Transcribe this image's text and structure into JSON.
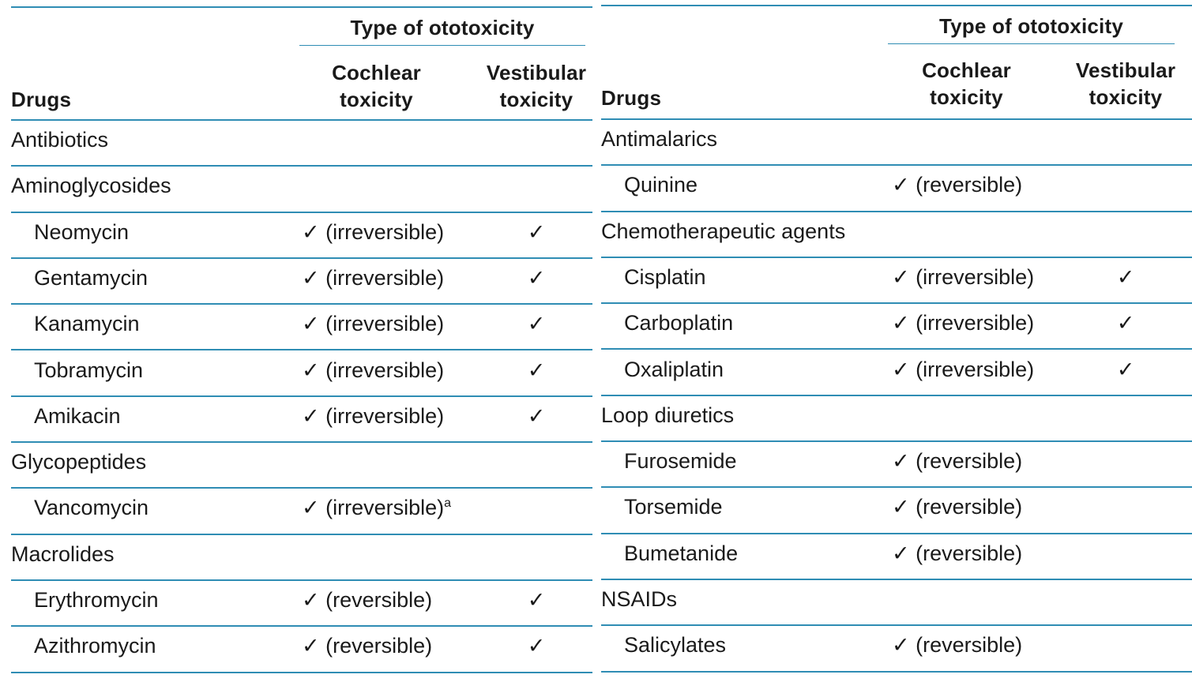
{
  "header": {
    "group_label": "Type of ototoxicity",
    "col_drugs": "Drugs",
    "col_cochlear_line1": "Cochlear",
    "col_cochlear_line2": "toxicity",
    "col_vestibular_line1": "Vestibular",
    "col_vestibular_line2": "toxicity"
  },
  "left_table": {
    "rows": [
      {
        "drug": "Antibiotics",
        "indent": false,
        "cochlear": "",
        "cochlear_sup": "",
        "vestibular": ""
      },
      {
        "drug": "Aminoglycosides",
        "indent": false,
        "cochlear": "",
        "cochlear_sup": "",
        "vestibular": ""
      },
      {
        "drug": "Neomycin",
        "indent": true,
        "cochlear": "✓ (irreversible)",
        "cochlear_sup": "",
        "vestibular": "✓"
      },
      {
        "drug": "Gentamycin",
        "indent": true,
        "cochlear": "✓ (irreversible)",
        "cochlear_sup": "",
        "vestibular": "✓"
      },
      {
        "drug": "Kanamycin",
        "indent": true,
        "cochlear": "✓ (irreversible)",
        "cochlear_sup": "",
        "vestibular": "✓"
      },
      {
        "drug": "Tobramycin",
        "indent": true,
        "cochlear": "✓ (irreversible)",
        "cochlear_sup": "",
        "vestibular": "✓"
      },
      {
        "drug": "Amikacin",
        "indent": true,
        "cochlear": "✓ (irreversible)",
        "cochlear_sup": "",
        "vestibular": "✓"
      },
      {
        "drug": "Glycopeptides",
        "indent": false,
        "cochlear": "",
        "cochlear_sup": "",
        "vestibular": ""
      },
      {
        "drug": "Vancomycin",
        "indent": true,
        "cochlear": "✓ (irreversible)",
        "cochlear_sup": "a",
        "vestibular": ""
      },
      {
        "drug": "Macrolides",
        "indent": false,
        "cochlear": "",
        "cochlear_sup": "",
        "vestibular": ""
      },
      {
        "drug": "Erythromycin",
        "indent": true,
        "cochlear": "✓ (reversible)",
        "cochlear_sup": "",
        "vestibular": "✓"
      },
      {
        "drug": "Azithromycin",
        "indent": true,
        "cochlear": "✓ (reversible)",
        "cochlear_sup": "",
        "vestibular": "✓"
      }
    ]
  },
  "right_table": {
    "rows": [
      {
        "drug": "Antimalarics",
        "indent": false,
        "cochlear": "",
        "cochlear_sup": "",
        "vestibular": ""
      },
      {
        "drug": "Quinine",
        "indent": true,
        "cochlear": "✓ (reversible)",
        "cochlear_sup": "",
        "vestibular": ""
      },
      {
        "drug": "Chemotherapeutic agents",
        "indent": false,
        "cochlear": "",
        "cochlear_sup": "",
        "vestibular": ""
      },
      {
        "drug": "Cisplatin",
        "indent": true,
        "cochlear": "✓ (irreversible)",
        "cochlear_sup": "",
        "vestibular": "✓"
      },
      {
        "drug": "Carboplatin",
        "indent": true,
        "cochlear": "✓ (irreversible)",
        "cochlear_sup": "",
        "vestibular": "✓"
      },
      {
        "drug": "Oxaliplatin",
        "indent": true,
        "cochlear": "✓ (irreversible)",
        "cochlear_sup": "",
        "vestibular": "✓"
      },
      {
        "drug": "Loop diuretics",
        "indent": false,
        "cochlear": "",
        "cochlear_sup": "",
        "vestibular": ""
      },
      {
        "drug": "Furosemide",
        "indent": true,
        "cochlear": "✓ (reversible)",
        "cochlear_sup": "",
        "vestibular": ""
      },
      {
        "drug": "Torsemide",
        "indent": true,
        "cochlear": "✓ (reversible)",
        "cochlear_sup": "",
        "vestibular": ""
      },
      {
        "drug": "Bumetanide",
        "indent": true,
        "cochlear": "✓ (reversible)",
        "cochlear_sup": "",
        "vestibular": ""
      },
      {
        "drug": "NSAIDs",
        "indent": false,
        "cochlear": "",
        "cochlear_sup": "",
        "vestibular": ""
      },
      {
        "drug": "Salicylates",
        "indent": true,
        "cochlear": "✓ (reversible)",
        "cochlear_sup": "",
        "vestibular": ""
      }
    ]
  },
  "colors": {
    "rule": "#2f8db4",
    "text": "#1a1a1a"
  }
}
